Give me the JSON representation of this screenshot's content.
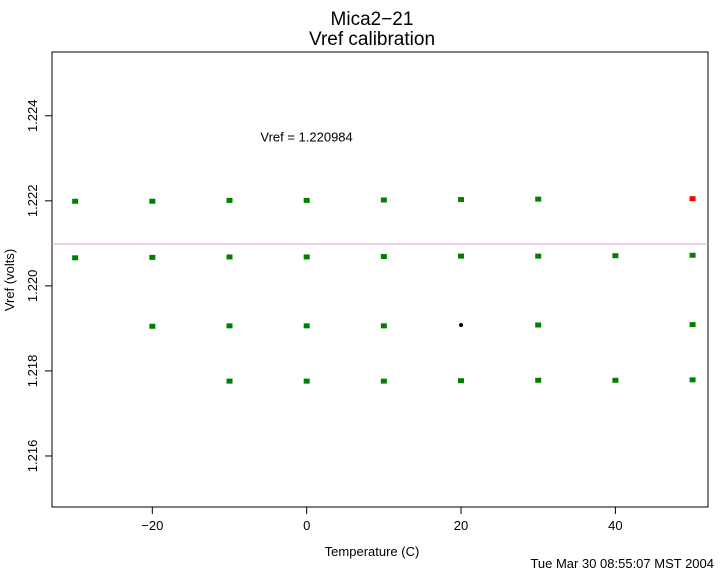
{
  "chart_data": {
    "type": "scatter",
    "title": "Mica2−21",
    "subtitle": "Vref calibration",
    "xlabel": "Temperature (C)",
    "ylabel": "Vref (volts)",
    "xlim": [
      -33,
      52
    ],
    "ylim": [
      1.2148,
      1.2255
    ],
    "xticks": [
      -20,
      0,
      20,
      40
    ],
    "xtick_labels": [
      "−20",
      "0",
      "20",
      "40"
    ],
    "yticks": [
      1.216,
      1.218,
      1.22,
      1.222,
      1.224
    ],
    "ytick_labels": [
      "1.216",
      "1.218",
      "1.220",
      "1.222",
      "1.224"
    ],
    "grid": false,
    "reference_line": {
      "y": 1.220984,
      "color": "#e0a0e0"
    },
    "annotation": {
      "text": "Vref = 1.220984",
      "x": -6,
      "y": 1.2234
    },
    "timestamp": "Tue Mar 30 08:55:07 MST 2004",
    "points": [
      {
        "x": -30,
        "y": 1.22199,
        "color": "#008000"
      },
      {
        "x": -30,
        "y": 1.22066,
        "color": "#008000"
      },
      {
        "x": -20,
        "y": 1.22199,
        "color": "#008000"
      },
      {
        "x": -20,
        "y": 1.22067,
        "color": "#008000"
      },
      {
        "x": -20,
        "y": 1.21905,
        "color": "#008000"
      },
      {
        "x": -10,
        "y": 1.22201,
        "color": "#008000"
      },
      {
        "x": -10,
        "y": 1.22068,
        "color": "#008000"
      },
      {
        "x": -10,
        "y": 1.21906,
        "color": "#008000"
      },
      {
        "x": -10,
        "y": 1.21776,
        "color": "#008000"
      },
      {
        "x": 0,
        "y": 1.22201,
        "color": "#008000"
      },
      {
        "x": 0,
        "y": 1.22068,
        "color": "#008000"
      },
      {
        "x": 0,
        "y": 1.21906,
        "color": "#008000"
      },
      {
        "x": 0,
        "y": 1.21776,
        "color": "#008000"
      },
      {
        "x": 10,
        "y": 1.22202,
        "color": "#008000"
      },
      {
        "x": 10,
        "y": 1.22069,
        "color": "#008000"
      },
      {
        "x": 10,
        "y": 1.21906,
        "color": "#008000"
      },
      {
        "x": 10,
        "y": 1.21776,
        "color": "#008000"
      },
      {
        "x": 20,
        "y": 1.22203,
        "color": "#008000"
      },
      {
        "x": 20,
        "y": 1.2207,
        "color": "#008000"
      },
      {
        "x": 20,
        "y": 1.21908,
        "color": "#000000"
      },
      {
        "x": 20,
        "y": 1.21777,
        "color": "#008000"
      },
      {
        "x": 30,
        "y": 1.22204,
        "color": "#008000"
      },
      {
        "x": 30,
        "y": 1.2207,
        "color": "#008000"
      },
      {
        "x": 30,
        "y": 1.21908,
        "color": "#008000"
      },
      {
        "x": 30,
        "y": 1.21778,
        "color": "#008000"
      },
      {
        "x": 40,
        "y": 1.22071,
        "color": "#008000"
      },
      {
        "x": 40,
        "y": 1.21778,
        "color": "#008000"
      },
      {
        "x": 50,
        "y": 1.22205,
        "color": "#ff0000"
      },
      {
        "x": 50,
        "y": 1.22072,
        "color": "#008000"
      },
      {
        "x": 50,
        "y": 1.21909,
        "color": "#008000"
      },
      {
        "x": 50,
        "y": 1.21779,
        "color": "#008000"
      }
    ]
  }
}
